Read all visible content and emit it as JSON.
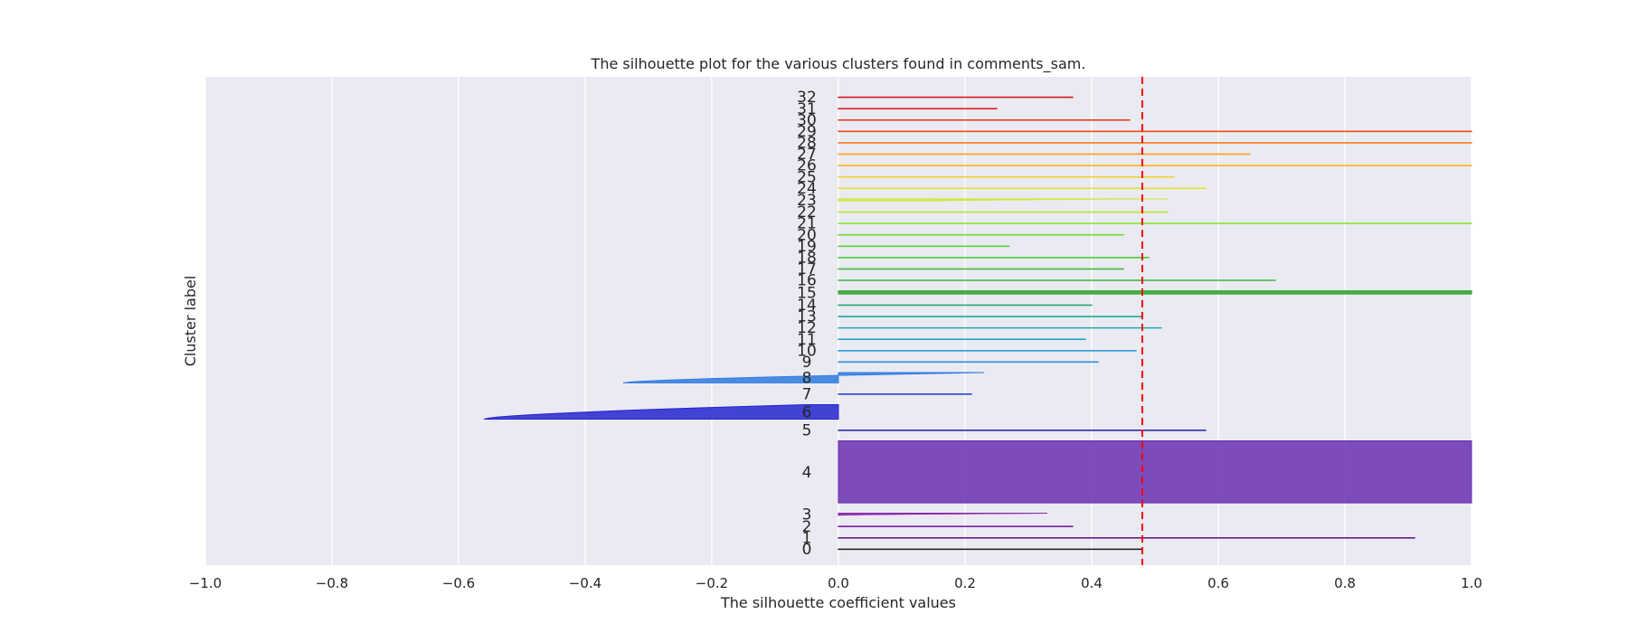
{
  "chart_data": {
    "type": "area",
    "title": "The silhouette plot for the various clusters found in comments_sam.",
    "xlabel": "The silhouette coefficient values",
    "ylabel": "Cluster label",
    "xlim": [
      -1.0,
      1.0
    ],
    "x_ticks": [
      "−1.0",
      "−0.8",
      "−0.6",
      "−0.4",
      "−0.2",
      "0.0",
      "0.2",
      "0.4",
      "0.6",
      "0.8",
      "1.0"
    ],
    "x_tick_values": [
      -1.0,
      -0.8,
      -0.6,
      -0.4,
      -0.2,
      0.0,
      0.2,
      0.4,
      0.6,
      0.8,
      1.0
    ],
    "grid": true,
    "average_silhouette_score": 0.48,
    "average_line_color": "#ff0000",
    "background": "#eaeaf2",
    "clusters": [
      {
        "label": "0",
        "min": 0.48,
        "max": 0.48,
        "size": 1,
        "color": "#1a1a1a"
      },
      {
        "label": "1",
        "min": 0.91,
        "max": 0.91,
        "size": 1,
        "color": "#6a1b8a"
      },
      {
        "label": "2",
        "min": 0.1,
        "max": 0.37,
        "size": 1,
        "color": "#7b1fa2"
      },
      {
        "label": "3",
        "min": 0.0,
        "max": 0.33,
        "size": 2,
        "color": "#8e24aa"
      },
      {
        "label": "4",
        "min": 1.0,
        "max": 1.0,
        "size": 60,
        "color": "#6a2fb0"
      },
      {
        "label": "5",
        "min": 0.0,
        "max": 0.58,
        "size": 1,
        "color": "#2f2fa8"
      },
      {
        "label": "6",
        "min": -0.56,
        "max": -0.05,
        "size": 14,
        "color": "#2424d0"
      },
      {
        "label": "7",
        "min": 0.0,
        "max": 0.21,
        "size": 1,
        "color": "#2a48c8"
      },
      {
        "label": "8",
        "min": -0.34,
        "max": 0.23,
        "size": 10,
        "color": "#2f7be0"
      },
      {
        "label": "9",
        "min": 0.41,
        "max": 0.41,
        "size": 1,
        "color": "#2f8fdc"
      },
      {
        "label": "10",
        "min": 0.47,
        "max": 0.47,
        "size": 1,
        "color": "#2a9fd8"
      },
      {
        "label": "11",
        "min": 0.39,
        "max": 0.39,
        "size": 1,
        "color": "#26a6c4"
      },
      {
        "label": "12",
        "min": 0.51,
        "max": 0.51,
        "size": 1,
        "color": "#22a8a8"
      },
      {
        "label": "13",
        "min": 0.48,
        "max": 0.48,
        "size": 1,
        "color": "#22a894"
      },
      {
        "label": "14",
        "min": 0.4,
        "max": 0.4,
        "size": 1,
        "color": "#22a878"
      },
      {
        "label": "15",
        "min": 1.0,
        "max": 1.0,
        "size": 3,
        "color": "#2aa52a"
      },
      {
        "label": "16",
        "min": 0.69,
        "max": 0.69,
        "size": 1,
        "color": "#3cb43c"
      },
      {
        "label": "17",
        "min": 0.45,
        "max": 0.45,
        "size": 1,
        "color": "#44bb3a"
      },
      {
        "label": "18",
        "min": 0.49,
        "max": 0.49,
        "size": 1,
        "color": "#4ccc3c"
      },
      {
        "label": "19",
        "min": 0.27,
        "max": 0.27,
        "size": 1,
        "color": "#5ad43c"
      },
      {
        "label": "20",
        "min": 0.45,
        "max": 0.45,
        "size": 1,
        "color": "#66dd33"
      },
      {
        "label": "21",
        "min": 1.0,
        "max": 1.0,
        "size": 1,
        "color": "#8ee632"
      },
      {
        "label": "22",
        "min": 0.52,
        "max": 0.52,
        "size": 1,
        "color": "#b8e62e"
      },
      {
        "label": "23",
        "min": 0.15,
        "max": 0.52,
        "size": 2,
        "color": "#cfe836"
      },
      {
        "label": "24",
        "min": 0.58,
        "max": 0.58,
        "size": 1,
        "color": "#e6e32e"
      },
      {
        "label": "25",
        "min": 0.53,
        "max": 0.53,
        "size": 1,
        "color": "#f2d12e"
      },
      {
        "label": "26",
        "min": 1.0,
        "max": 1.0,
        "size": 1,
        "color": "#ffb520"
      },
      {
        "label": "27",
        "min": 0.65,
        "max": 0.65,
        "size": 1,
        "color": "#ff9e1a"
      },
      {
        "label": "28",
        "min": 1.0,
        "max": 1.0,
        "size": 1,
        "color": "#ff7a14"
      },
      {
        "label": "29",
        "min": 1.0,
        "max": 1.0,
        "size": 1,
        "color": "#f24a14"
      },
      {
        "label": "30",
        "min": 0.46,
        "max": 0.46,
        "size": 1,
        "color": "#e63314"
      },
      {
        "label": "31",
        "min": 0.25,
        "max": 0.25,
        "size": 1,
        "color": "#de2020"
      },
      {
        "label": "32",
        "min": 0.37,
        "max": 0.37,
        "size": 1,
        "color": "#d41a1a"
      }
    ]
  }
}
